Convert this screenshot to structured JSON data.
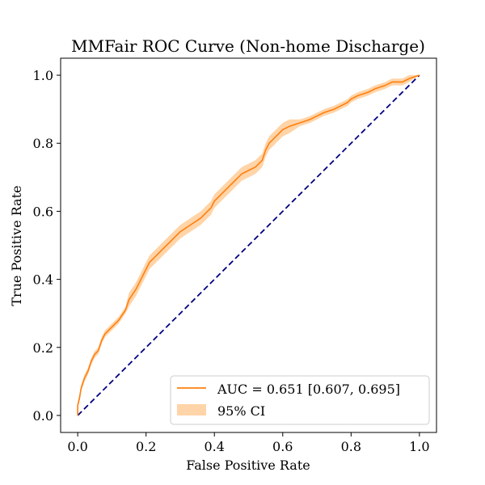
{
  "chart_data": {
    "type": "line",
    "title": "MMFair ROC Curve (Non-home Discharge)",
    "xlabel": "False Positive Rate",
    "ylabel": "True Positive Rate",
    "xlim": [
      -0.05,
      1.05
    ],
    "ylim": [
      -0.05,
      1.05
    ],
    "xticks": [
      "0.0",
      "0.2",
      "0.4",
      "0.6",
      "0.8",
      "1.0"
    ],
    "yticks": [
      "0.0",
      "0.2",
      "0.4",
      "0.6",
      "0.8",
      "1.0"
    ],
    "grid": false,
    "legend_position": "lower right",
    "legend": {
      "roc_label": "AUC = 0.651 [0.607, 0.695]",
      "ci_label": "95% CI"
    },
    "colors": {
      "roc": "#ff7f0e",
      "ci_fill": "#ffcc99",
      "diagonal": "#000080"
    },
    "series": [
      {
        "name": "AUC = 0.651 [0.607, 0.695]",
        "x": [
          0.0,
          0.0,
          0.005,
          0.01,
          0.02,
          0.03,
          0.04,
          0.05,
          0.06,
          0.07,
          0.08,
          0.1,
          0.12,
          0.14,
          0.15,
          0.17,
          0.18,
          0.2,
          0.21,
          0.23,
          0.25,
          0.27,
          0.3,
          0.33,
          0.36,
          0.39,
          0.4,
          0.42,
          0.44,
          0.46,
          0.48,
          0.5,
          0.52,
          0.54,
          0.55,
          0.56,
          0.57,
          0.58,
          0.6,
          0.62,
          0.65,
          0.68,
          0.7,
          0.72,
          0.75,
          0.77,
          0.79,
          0.8,
          0.82,
          0.85,
          0.87,
          0.9,
          0.92,
          0.95,
          0.97,
          1.0
        ],
        "y": [
          0.0,
          0.03,
          0.05,
          0.08,
          0.11,
          0.13,
          0.16,
          0.18,
          0.19,
          0.22,
          0.24,
          0.26,
          0.28,
          0.31,
          0.34,
          0.37,
          0.39,
          0.43,
          0.45,
          0.47,
          0.49,
          0.51,
          0.54,
          0.56,
          0.58,
          0.61,
          0.63,
          0.65,
          0.67,
          0.69,
          0.71,
          0.72,
          0.73,
          0.75,
          0.78,
          0.8,
          0.81,
          0.82,
          0.84,
          0.85,
          0.86,
          0.87,
          0.88,
          0.89,
          0.9,
          0.91,
          0.92,
          0.93,
          0.94,
          0.95,
          0.96,
          0.97,
          0.98,
          0.98,
          0.99,
          1.0
        ],
        "ci_lower": [
          0.0,
          0.02,
          0.04,
          0.07,
          0.1,
          0.12,
          0.15,
          0.17,
          0.18,
          0.21,
          0.23,
          0.25,
          0.27,
          0.3,
          0.32,
          0.35,
          0.37,
          0.41,
          0.43,
          0.45,
          0.47,
          0.49,
          0.52,
          0.54,
          0.56,
          0.59,
          0.61,
          0.63,
          0.65,
          0.67,
          0.69,
          0.7,
          0.71,
          0.73,
          0.76,
          0.78,
          0.79,
          0.8,
          0.82,
          0.83,
          0.85,
          0.86,
          0.87,
          0.88,
          0.89,
          0.9,
          0.91,
          0.92,
          0.93,
          0.94,
          0.95,
          0.96,
          0.97,
          0.97,
          0.98,
          1.0
        ],
        "ci_upper": [
          0.0,
          0.04,
          0.06,
          0.09,
          0.12,
          0.14,
          0.17,
          0.19,
          0.2,
          0.23,
          0.25,
          0.27,
          0.29,
          0.32,
          0.36,
          0.39,
          0.41,
          0.45,
          0.47,
          0.49,
          0.51,
          0.53,
          0.56,
          0.58,
          0.6,
          0.63,
          0.65,
          0.67,
          0.69,
          0.71,
          0.73,
          0.74,
          0.75,
          0.77,
          0.8,
          0.82,
          0.83,
          0.84,
          0.86,
          0.87,
          0.87,
          0.88,
          0.89,
          0.9,
          0.91,
          0.92,
          0.93,
          0.94,
          0.95,
          0.96,
          0.97,
          0.98,
          0.99,
          0.99,
          1.0,
          1.0
        ]
      },
      {
        "name": "",
        "x": [
          0.0,
          1.0
        ],
        "y": [
          0.0,
          1.0
        ],
        "style": "dashed"
      }
    ]
  }
}
